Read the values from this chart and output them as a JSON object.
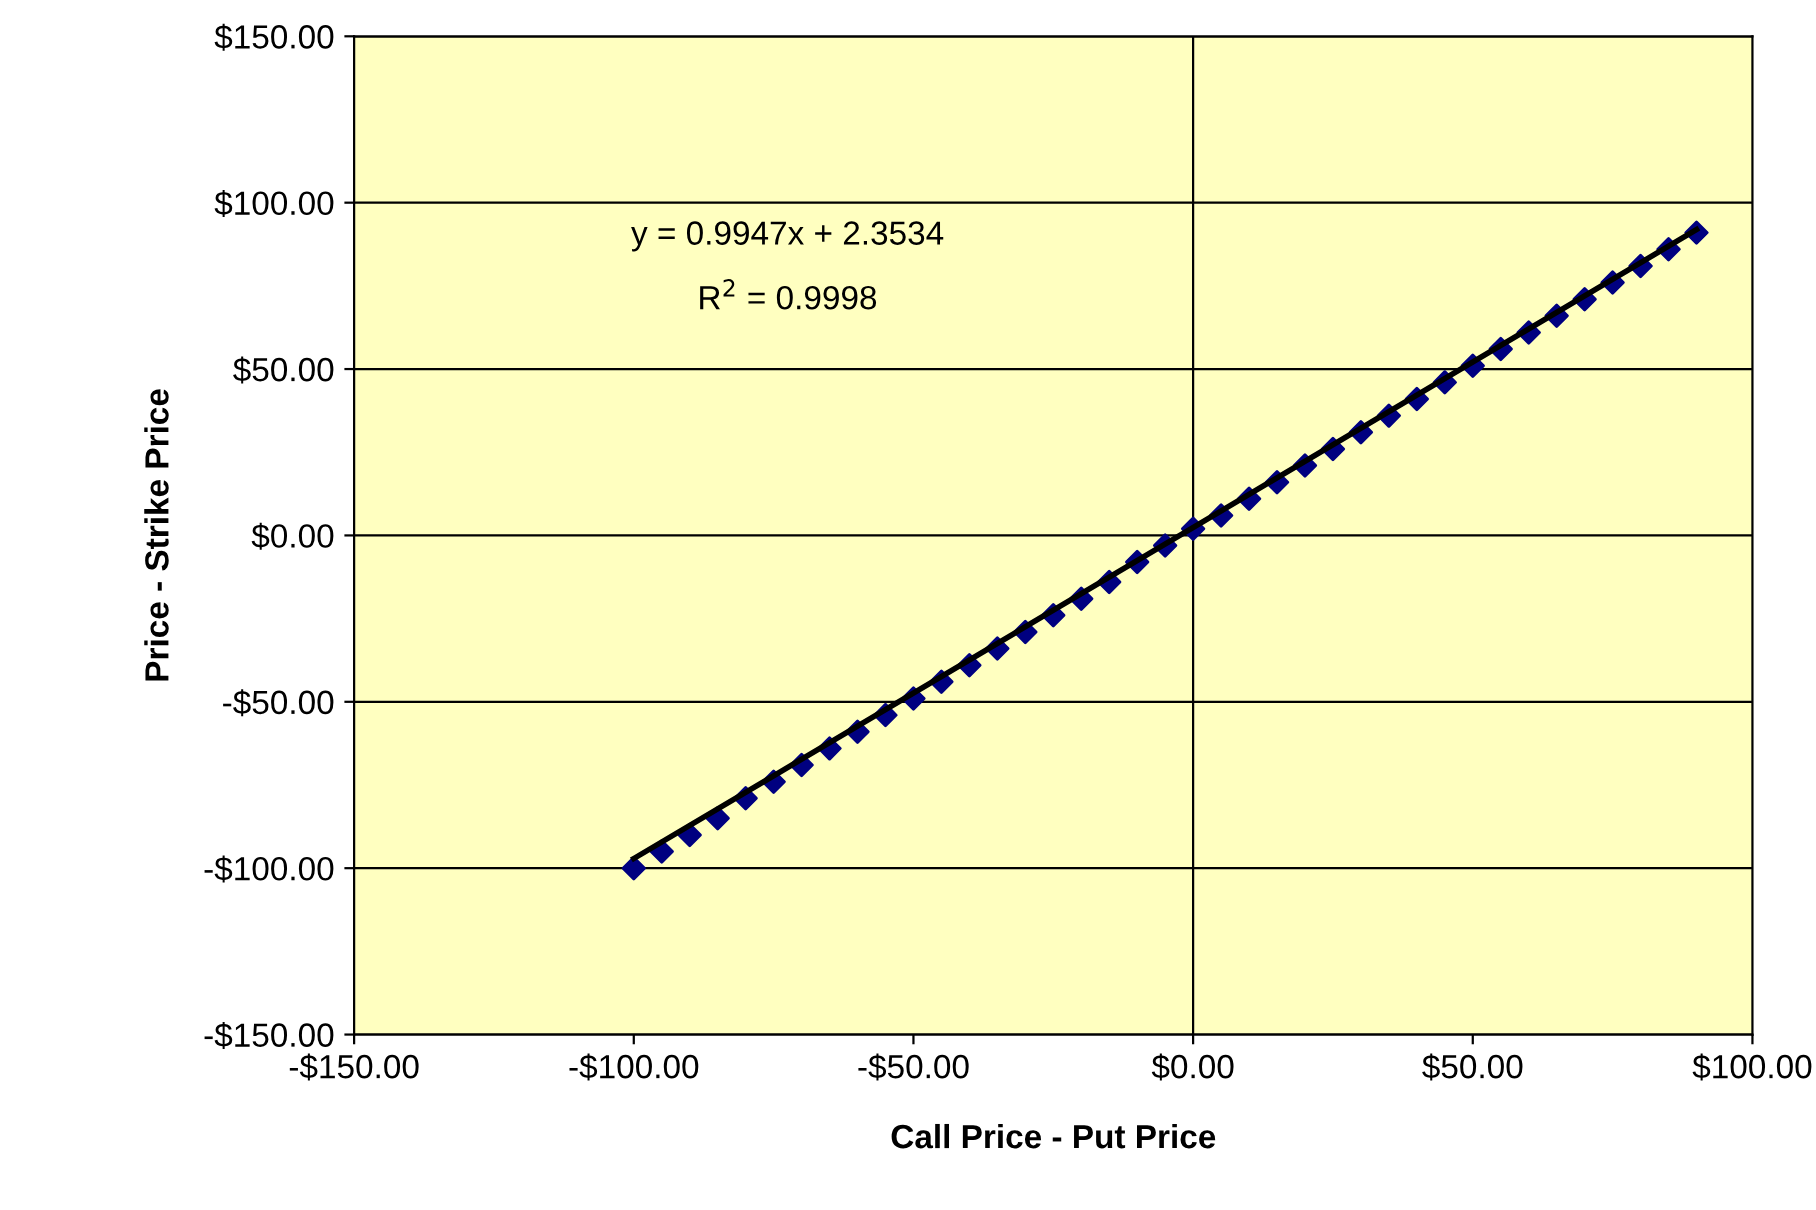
{
  "chart_data": {
    "type": "scatter",
    "xlabel": "Call Price - Put Price",
    "ylabel": "Price - Strike Price",
    "series": [
      {
        "color": "#000080",
        "marker": "diamond",
        "x": [
          -100,
          -95,
          -90,
          -85,
          -80,
          -75,
          -70,
          -65,
          -60,
          -55,
          -50,
          -45,
          -40,
          -35,
          -30,
          -25,
          -20,
          -15,
          -10,
          -5,
          0,
          5,
          10,
          15,
          20,
          25,
          30,
          35,
          40,
          45,
          50,
          55,
          60,
          65,
          70,
          75,
          80,
          85,
          90
        ],
        "values": [
          -100,
          -95,
          -90,
          -85,
          -79,
          -74,
          -69,
          -64,
          -59,
          -54,
          -49,
          -44,
          -39,
          -34,
          -29,
          -24,
          -19,
          -14,
          -8,
          -3,
          2,
          6,
          11,
          16,
          21,
          26,
          31,
          36,
          41,
          46,
          51,
          56,
          61,
          66,
          71,
          76,
          81,
          86,
          91
        ]
      },
      {
        "type": "line",
        "color": "#000000",
        "line_style": "solid",
        "x": [
          -100,
          90
        ],
        "values": [
          -97.1,
          91.9
        ]
      }
    ],
    "annotations": [
      "y = 0.9947x + 2.3534",
      "R$^{2}$ = 0.9998"
    ],
    "ref_lines": [
      {
        "axis": "x",
        "value": 0,
        "color": "#000000"
      }
    ],
    "xlim": [
      -150,
      100
    ],
    "ylim": [
      -150,
      150
    ],
    "xticks": [
      {
        "value": -150,
        "label": "-$150.00"
      },
      {
        "value": -100,
        "label": "-$100.00"
      },
      {
        "value": -50,
        "label": "-$50.00"
      },
      {
        "value": 0,
        "label": "$0.00"
      },
      {
        "value": 50,
        "label": "$50.00"
      },
      {
        "value": 100,
        "label": "$100.00"
      }
    ],
    "yticks": [
      {
        "value": -150,
        "label": "-$150.00"
      },
      {
        "value": -100,
        "label": "-$100.00"
      },
      {
        "value": -50,
        "label": "-$50.00"
      },
      {
        "value": 0,
        "label": "$0.00"
      },
      {
        "value": 50,
        "label": "$50.00"
      },
      {
        "value": 100,
        "label": "$100.00"
      },
      {
        "value": 150,
        "label": "$150.00"
      }
    ],
    "grid": "y",
    "legend": false
  }
}
